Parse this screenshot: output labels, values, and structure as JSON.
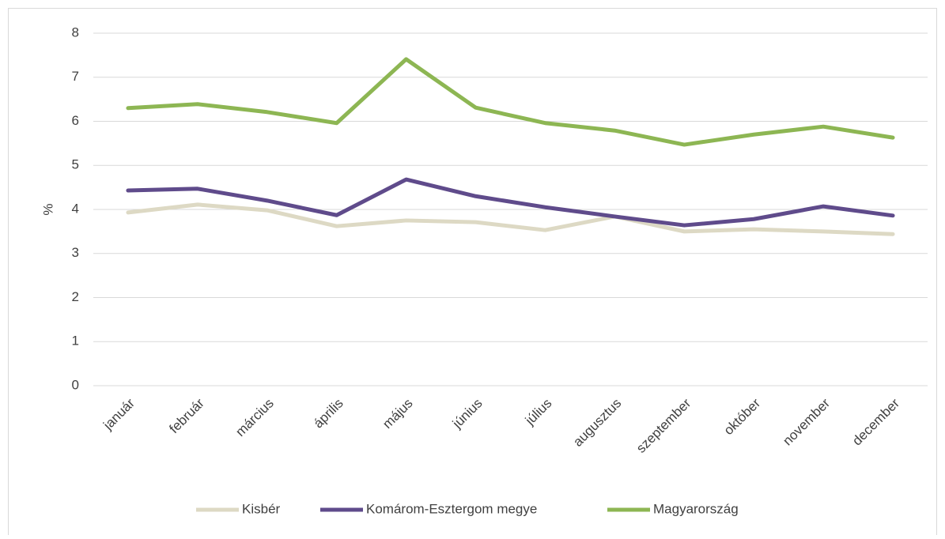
{
  "chart_data": {
    "type": "line",
    "ylabel": "%",
    "categories": [
      "január",
      "február",
      "március",
      "április",
      "május",
      "június",
      "július",
      "augusztus",
      "szeptember",
      "október",
      "november",
      "december"
    ],
    "series": [
      {
        "name": "Kisbér",
        "color": "#ddd9c4",
        "values": [
          3.93,
          4.11,
          3.98,
          3.62,
          3.75,
          3.71,
          3.53,
          3.84,
          3.5,
          3.55,
          3.5,
          3.44
        ]
      },
      {
        "name": "Komárom-Esztergom megye",
        "color": "#5f4b8b",
        "values": [
          4.43,
          4.47,
          4.2,
          3.87,
          4.68,
          4.3,
          4.05,
          3.84,
          3.64,
          3.78,
          4.07,
          3.86
        ]
      },
      {
        "name": "Magyarország",
        "color": "#8db653",
        "values": [
          6.3,
          6.39,
          6.21,
          5.96,
          7.41,
          6.31,
          5.96,
          5.79,
          5.47,
          5.7,
          5.88,
          5.63
        ]
      }
    ],
    "ylim": [
      0,
      8
    ],
    "yticks": [
      0,
      1,
      2,
      3,
      4,
      5,
      6,
      7,
      8
    ],
    "grid": true,
    "legend": "bottom"
  }
}
